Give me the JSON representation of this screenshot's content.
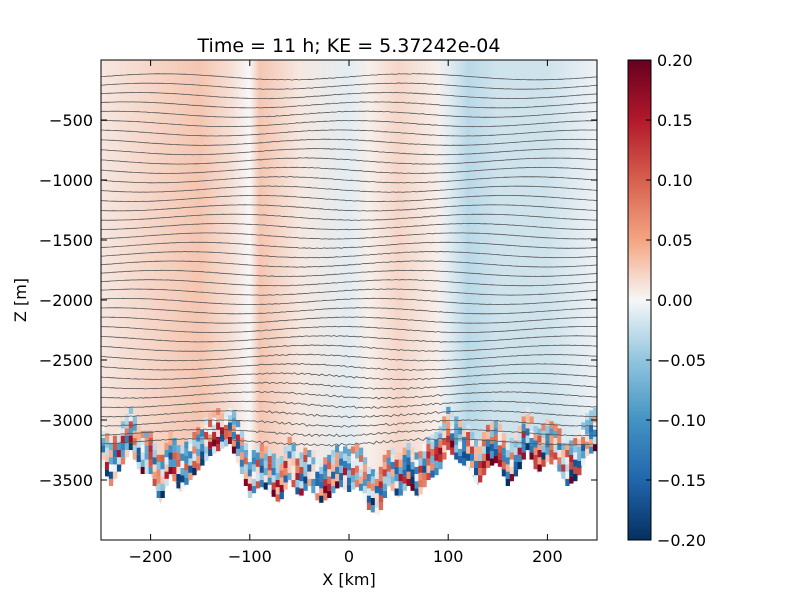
{
  "chart_data": {
    "type": "heatmap",
    "title": "Time = 11 h; KE = 5.37242e-04",
    "xlabel": "X [km]",
    "ylabel": "Z [m]",
    "xlim": [
      -250,
      250
    ],
    "ylim": [
      -4000,
      0
    ],
    "x_ticks": [
      -200,
      -100,
      0,
      100,
      200
    ],
    "x_tick_labels": [
      "−200",
      "−100",
      "0",
      "100",
      "200"
    ],
    "y_ticks": [
      -3500,
      -3000,
      -2500,
      -2000,
      -1500,
      -1000,
      -500
    ],
    "y_tick_labels": [
      "−3500",
      "−3000",
      "−2500",
      "−2000",
      "−1500",
      "−1000",
      "−500"
    ],
    "colorbar": {
      "min": -0.2,
      "max": 0.2,
      "colormap": "RdBu_r",
      "ticks": [
        0.2,
        0.15,
        0.1,
        0.05,
        0.0,
        -0.05,
        -0.1,
        -0.15,
        -0.2
      ],
      "tick_labels": [
        "0.20",
        "0.15",
        "0.10",
        "0.05",
        "0.00",
        "−0.05",
        "−0.10",
        "−0.15",
        "−0.20"
      ]
    },
    "colors": {
      "dark_red": "#67001f",
      "red": "#d6604d",
      "light_red": "#fddbc7",
      "white": "#f7f7f7",
      "light_blue": "#d1e5f0",
      "blue": "#4393c3",
      "dark_blue": "#053061",
      "contour": "#555555"
    },
    "bathymetry": {
      "x": [
        -250,
        -240,
        -230,
        -220,
        -210,
        -200,
        -190,
        -180,
        -170,
        -160,
        -150,
        -140,
        -130,
        -120,
        -110,
        -100,
        -90,
        -80,
        -70,
        -60,
        -50,
        -40,
        -30,
        -20,
        -10,
        0,
        10,
        20,
        30,
        40,
        50,
        60,
        70,
        80,
        90,
        100,
        110,
        120,
        130,
        140,
        150,
        160,
        170,
        180,
        190,
        200,
        210,
        220,
        230,
        240,
        250
      ],
      "z": [
        -3350,
        -3550,
        -3400,
        -3250,
        -3450,
        -3450,
        -3700,
        -3450,
        -3600,
        -3500,
        -3400,
        -3300,
        -3250,
        -3200,
        -3400,
        -3650,
        -3550,
        -3600,
        -3700,
        -3500,
        -3650,
        -3550,
        -3700,
        -3650,
        -3550,
        -3600,
        -3550,
        -3750,
        -3800,
        -3550,
        -3650,
        -3550,
        -3650,
        -3500,
        -3450,
        -3250,
        -3350,
        -3400,
        -3550,
        -3400,
        -3350,
        -3550,
        -3450,
        -3250,
        -3450,
        -3350,
        -3400,
        -3550,
        -3500,
        -3300,
        -3250
      ]
    },
    "velocity_field": {
      "x_columns": [
        -250,
        -200,
        -150,
        -120,
        -100,
        -90,
        -50,
        0,
        20,
        50,
        90,
        100,
        120,
        150,
        200,
        250
      ],
      "values": [
        0.01,
        0.02,
        0.03,
        0.015,
        0.0,
        0.03,
        0.01,
        -0.01,
        0.005,
        0.02,
        0.005,
        -0.01,
        -0.03,
        -0.02,
        -0.02,
        -0.005
      ]
    },
    "contour_levels": 40
  }
}
